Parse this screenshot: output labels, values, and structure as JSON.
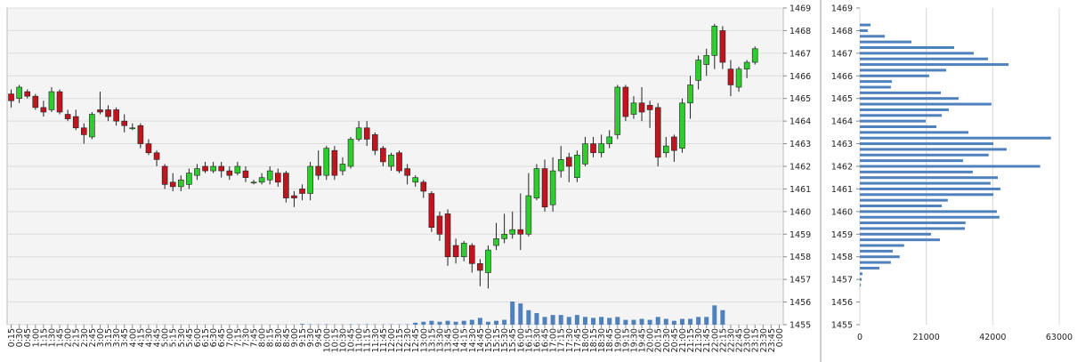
{
  "chart_data": [
    {
      "type": "candlestick",
      "categories": [
        "0:15",
        "0:30",
        "0:45",
        "1:00",
        "1:15",
        "1:30",
        "1:45",
        "2:00",
        "2:15",
        "2:30",
        "2:45",
        "3:00",
        "3:15",
        "3:30",
        "3:45",
        "4:00",
        "4:15",
        "4:30",
        "4:45",
        "5:00",
        "5:15",
        "5:30",
        "5:45",
        "6:00",
        "6:15",
        "6:30",
        "6:45",
        "7:00",
        "7:15",
        "7:30",
        "7:45",
        "8:00",
        "8:15",
        "8:30",
        "8:45",
        "9:00",
        "9:15",
        "9:30",
        "9:45",
        "10:00",
        "10:15",
        "10:30",
        "10:45",
        "11:00",
        "11:15",
        "11:30",
        "11:45",
        "12:00",
        "12:15",
        "12:30",
        "12:45",
        "13:00",
        "13:15",
        "13:30",
        "13:45",
        "14:00",
        "14:15",
        "14:30",
        "14:45",
        "15:00",
        "15:15",
        "15:30",
        "15:45",
        "16:00",
        "16:15",
        "16:30",
        "16:45",
        "17:00",
        "17:15",
        "17:30",
        "17:45",
        "18:00",
        "18:15",
        "18:30",
        "18:45",
        "19:00",
        "19:15",
        "19:30",
        "19:45",
        "20:00",
        "20:15",
        "20:30",
        "20:45",
        "21:00",
        "21:15",
        "21:30",
        "21:45",
        "22:00",
        "22:15",
        "22:30",
        "22:45",
        "23:00",
        "23:15",
        "23:30",
        "23:45",
        "0:00"
      ],
      "open": [
        1465.2,
        1465.0,
        1465.3,
        1465.1,
        1464.6,
        1464.5,
        1465.3,
        1464.3,
        1464.2,
        1463.7,
        1463.3,
        1464.5,
        1464.5,
        1464.5,
        1464.0,
        1463.7,
        1463.8,
        1463.0,
        1462.6,
        1462.0,
        1461.3,
        1461.1,
        1461.2,
        1461.6,
        1462.0,
        1461.8,
        1462.0,
        1461.8,
        1461.7,
        1461.8,
        1461.3,
        1461.3,
        1461.4,
        1461.7,
        1461.7,
        1460.7,
        1461.0,
        1460.8,
        1462.0,
        1461.6,
        1462.7,
        1461.8,
        1462.0,
        1463.2,
        1463.7,
        1463.4,
        1462.8,
        1462.0,
        1462.6,
        1461.9,
        1461.3,
        1461.3,
        1460.8,
        1459.8,
        1459.9,
        1458.5,
        1458.0,
        1458.5,
        1457.7,
        1457.3,
        1458.5,
        1458.8,
        1459.0,
        1459.2,
        1459.0,
        1460.6,
        1461.9,
        1460.3,
        1461.8,
        1462.4,
        1461.5,
        1462.1,
        1463.0,
        1462.6,
        1463.0,
        1463.4,
        1465.5,
        1464.3,
        1464.8,
        1464.7,
        1464.6,
        1462.6,
        1463.3,
        1462.8,
        1464.8,
        1465.8,
        1466.5,
        1466.9,
        1468.0,
        1466.3,
        1465.5,
        1466.3,
        1466.6,
        null,
        null,
        null
      ],
      "high": [
        1465.4,
        1465.6,
        1465.4,
        1465.2,
        1464.9,
        1465.5,
        1465.4,
        1464.5,
        1464.5,
        1463.9,
        1464.4,
        1465.3,
        1464.7,
        1464.6,
        1464.3,
        1463.9,
        1463.9,
        1463.2,
        1462.7,
        1462.1,
        1461.7,
        1461.6,
        1461.9,
        1462.1,
        1462.2,
        1462.2,
        1462.2,
        1462.0,
        1462.2,
        1462.0,
        1461.4,
        1461.7,
        1462.0,
        1461.9,
        1461.8,
        1460.9,
        1461.2,
        1462.2,
        1462.7,
        1462.9,
        1462.9,
        1462.4,
        1463.3,
        1464.0,
        1464.0,
        1463.5,
        1462.9,
        1462.6,
        1462.7,
        1462.1,
        1461.6,
        1461.4,
        1460.9,
        1460.0,
        1460.1,
        1458.8,
        1458.7,
        1458.6,
        1457.9,
        1458.5,
        1459.5,
        1459.9,
        1460.0,
        1460.8,
        1461.7,
        1462.1,
        1462.3,
        1462.4,
        1462.9,
        1462.6,
        1462.7,
        1463.3,
        1463.3,
        1463.4,
        1463.6,
        1465.6,
        1465.6,
        1465.1,
        1465.5,
        1464.9,
        1464.8,
        1463.3,
        1463.4,
        1465.0,
        1466.0,
        1466.9,
        1467.2,
        1468.3,
        1468.2,
        1466.7,
        1466.4,
        1466.7,
        1467.3,
        null,
        null,
        null
      ],
      "low": [
        1464.6,
        1464.8,
        1465.0,
        1464.5,
        1464.2,
        1464.4,
        1464.3,
        1464.0,
        1463.6,
        1463.0,
        1463.2,
        1464.3,
        1464.0,
        1463.8,
        1463.5,
        1463.6,
        1462.8,
        1462.5,
        1462.0,
        1461.0,
        1460.9,
        1460.9,
        1461.0,
        1461.4,
        1461.7,
        1461.7,
        1461.5,
        1461.4,
        1461.6,
        1461.3,
        1461.2,
        1461.2,
        1461.2,
        1461.1,
        1460.4,
        1460.2,
        1460.5,
        1460.5,
        1461.4,
        1461.4,
        1461.4,
        1461.6,
        1461.9,
        1463.1,
        1462.9,
        1462.5,
        1462.0,
        1461.8,
        1461.7,
        1461.2,
        1461.1,
        1460.6,
        1459.1,
        1458.7,
        1457.6,
        1457.7,
        1457.8,
        1457.3,
        1456.7,
        1456.6,
        1458.3,
        1458.6,
        1458.8,
        1458.3,
        1458.9,
        1460.5,
        1460.0,
        1460.0,
        1461.5,
        1461.3,
        1461.3,
        1462.0,
        1462.4,
        1462.4,
        1462.8,
        1463.2,
        1464.0,
        1464.1,
        1464.0,
        1463.7,
        1462.0,
        1462.4,
        1462.2,
        1462.6,
        1464.1,
        1465.4,
        1466.0,
        1466.3,
        1466.3,
        1465.1,
        1465.3,
        1465.9,
        1466.5,
        null,
        null,
        null
      ],
      "close": [
        1464.9,
        1465.5,
        1465.1,
        1464.6,
        1464.4,
        1465.3,
        1464.4,
        1464.1,
        1463.7,
        1463.4,
        1464.3,
        1464.4,
        1464.2,
        1464.0,
        1463.8,
        1463.7,
        1463.0,
        1462.6,
        1462.3,
        1461.2,
        1461.1,
        1461.4,
        1461.7,
        1461.9,
        1461.8,
        1462.0,
        1461.8,
        1461.6,
        1462.0,
        1461.5,
        1461.3,
        1461.5,
        1461.8,
        1461.3,
        1460.6,
        1460.6,
        1460.8,
        1462.0,
        1461.6,
        1462.8,
        1461.6,
        1462.1,
        1463.2,
        1463.7,
        1463.2,
        1462.7,
        1462.2,
        1462.5,
        1461.8,
        1461.6,
        1461.5,
        1460.9,
        1459.3,
        1459.0,
        1458.0,
        1458.0,
        1458.6,
        1457.7,
        1457.4,
        1458.3,
        1458.8,
        1459.0,
        1459.2,
        1459.0,
        1460.7,
        1461.9,
        1460.2,
        1461.8,
        1462.3,
        1462.0,
        1462.5,
        1463.0,
        1462.6,
        1463.0,
        1463.3,
        1465.5,
        1464.2,
        1464.8,
        1464.4,
        1464.5,
        1462.4,
        1462.9,
        1462.7,
        1464.8,
        1465.6,
        1466.7,
        1466.9,
        1468.2,
        1466.6,
        1465.6,
        1466.3,
        1466.6,
        1467.2,
        null,
        null,
        null
      ],
      "volume": [
        20,
        20,
        20,
        20,
        20,
        20,
        20,
        20,
        20,
        20,
        20,
        20,
        20,
        20,
        20,
        20,
        20,
        20,
        20,
        20,
        20,
        20,
        20,
        20,
        20,
        20,
        20,
        20,
        20,
        20,
        20,
        20,
        20,
        20,
        20,
        20,
        150,
        60,
        40,
        60,
        40,
        40,
        60,
        40,
        60,
        40,
        40,
        60,
        40,
        60,
        400,
        600,
        800,
        600,
        800,
        600,
        800,
        1000,
        1400,
        600,
        800,
        1000,
        4800,
        4400,
        3000,
        2400,
        1600,
        2000,
        2000,
        1600,
        2000,
        1600,
        1400,
        1600,
        1400,
        1600,
        1000,
        1000,
        1200,
        1000,
        1600,
        1200,
        800,
        1200,
        1200,
        1600,
        1600,
        4000,
        3000,
        0,
        0,
        0,
        0,
        null,
        null,
        null
      ],
      "ylim": [
        1455,
        1469
      ],
      "yticks": [
        1455,
        1456,
        1457,
        1458,
        1459,
        1460,
        1461,
        1462,
        1463,
        1464,
        1465,
        1466,
        1467,
        1468,
        1469
      ],
      "up_color": "#2ecc2e",
      "down_color": "#c0141e",
      "volume_color": "#4f81bd",
      "grid": true
    },
    {
      "type": "profile",
      "y": [
        1468.25,
        1468.0,
        1467.75,
        1467.5,
        1467.25,
        1467.0,
        1466.75,
        1466.5,
        1466.25,
        1466.0,
        1465.75,
        1465.5,
        1465.25,
        1465.0,
        1464.75,
        1464.5,
        1464.25,
        1464.0,
        1463.75,
        1463.5,
        1463.25,
        1463.0,
        1462.75,
        1462.5,
        1462.25,
        1462.0,
        1461.75,
        1461.5,
        1461.25,
        1461.0,
        1460.75,
        1460.5,
        1460.25,
        1460.0,
        1459.75,
        1459.5,
        1459.25,
        1459.0,
        1458.75,
        1458.5,
        1458.25,
        1458.0,
        1457.75,
        1457.5,
        1457.25,
        1457.0,
        1456.75
      ],
      "values": [
        3400,
        2500,
        7900,
        16300,
        29800,
        36000,
        40500,
        47000,
        27300,
        21900,
        10100,
        9800,
        25600,
        31200,
        41600,
        28100,
        25900,
        20800,
        24200,
        34300,
        60400,
        42200,
        46400,
        40700,
        32600,
        57000,
        35700,
        43600,
        41300,
        44400,
        42200,
        27800,
        25900,
        43300,
        44100,
        33400,
        33200,
        22500,
        25300,
        14000,
        10400,
        12600,
        9800,
        6200,
        800,
        600,
        300
      ],
      "xlim": [
        0,
        63000
      ],
      "xticks": [
        0,
        21000,
        42000,
        63000
      ],
      "ylim": [
        1455,
        1469
      ],
      "yticks": [
        1455,
        1456,
        1457,
        1458,
        1459,
        1460,
        1461,
        1462,
        1463,
        1464,
        1465,
        1466,
        1467,
        1468,
        1469
      ],
      "color": "#4f81bd",
      "grid": true
    }
  ]
}
